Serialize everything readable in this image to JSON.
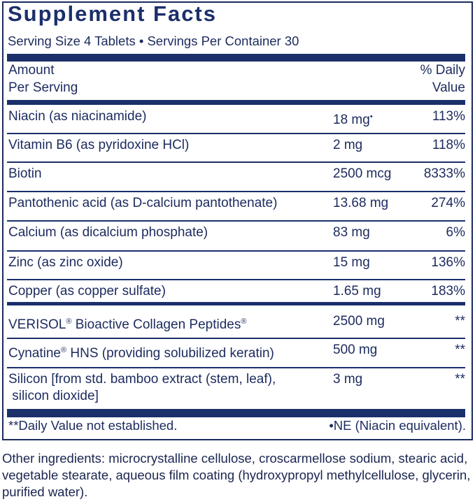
{
  "title": "Supplement Facts",
  "serving_line": "Serving Size 4 Tablets • Servings Per Container 30",
  "header": {
    "amount_line1": "Amount",
    "amount_line2": "Per Serving",
    "dv_line1": "% Daily",
    "dv_line2": "Value"
  },
  "rows": [
    {
      "name": "Niacin (as niacinamide)",
      "amount": "18 mg",
      "mark": "•",
      "dv": "113%"
    },
    {
      "name": "Vitamin B6 (as pyridoxine HCl)",
      "amount": "2 mg",
      "dv": "118%"
    },
    {
      "name": "Biotin",
      "amount": "2500 mcg",
      "dv": "8333%"
    },
    {
      "name": "Pantothenic acid (as D-calcium pantothenate)",
      "amount": "13.68 mg",
      "dv": "274%"
    },
    {
      "name": "Calcium (as dicalcium phosphate)",
      "amount": "83 mg",
      "dv": "6%"
    },
    {
      "name": "Zinc (as zinc oxide)",
      "amount": "15 mg",
      "dv": "136%"
    },
    {
      "name": "Copper (as copper sulfate)",
      "amount": "1.65 mg",
      "dv": "183%"
    }
  ],
  "other_rows": [
    {
      "name_a": "VERISOL",
      "reg1": "®",
      "name_b": " Bioactive Collagen Peptides",
      "reg2": "®",
      "amount": "2500 mg",
      "dv": "**"
    },
    {
      "name_a": "Cynatine",
      "reg1": "®",
      "name_b": " HNS (providing solubilized keratin)",
      "amount": "500 mg",
      "dv": "**"
    },
    {
      "name_line1": "Silicon [from std. bamboo extract (stem, leaf),",
      "name_line2": " silicon dioxide]",
      "amount": "3 mg",
      "dv": "**"
    }
  ],
  "footnotes": {
    "left": "**Daily Value not established.",
    "right": "•NE (Niacin equivalent)."
  },
  "other_ingredients": "Other ingredients: microcrystalline cellulose, croscarmellose sodium, stearic acid, vegetable stearate, aqueous film coating (hydroxypropyl methylcellulose, glycerin, purified water).",
  "colors": {
    "navy": "#1b2f6b"
  }
}
